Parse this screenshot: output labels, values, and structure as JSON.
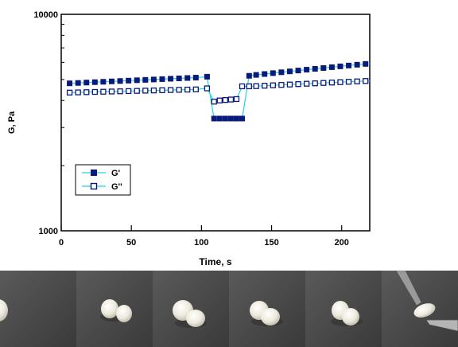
{
  "chart_data": {
    "type": "scatter",
    "xlabel": "Time, s",
    "ylabel": "G, Pa",
    "xlim": [
      0,
      220
    ],
    "ylim": [
      1000,
      10000
    ],
    "y_scale": "log",
    "x_ticks": [
      "0",
      "50",
      "100",
      "150",
      "200"
    ],
    "y_ticks": [
      "1000",
      "10000"
    ],
    "legend_position": "lower-left",
    "grid": false,
    "series": [
      {
        "name": "G'",
        "marker": "filled-square",
        "color": "#0a1a7a",
        "line_color": "#22d3e6",
        "x": [
          6,
          12,
          18,
          24,
          30,
          36,
          42,
          48,
          54,
          60,
          66,
          72,
          78,
          84,
          90,
          96,
          104,
          109,
          113,
          117,
          121,
          125,
          129,
          134,
          139,
          145,
          151,
          157,
          163,
          169,
          175,
          181,
          187,
          193,
          199,
          205,
          211,
          217
        ],
        "y": [
          4800,
          4820,
          4840,
          4860,
          4880,
          4900,
          4920,
          4940,
          4960,
          4980,
          5000,
          5020,
          5040,
          5060,
          5080,
          5100,
          5150,
          3300,
          3300,
          3300,
          3300,
          3300,
          3300,
          5200,
          5250,
          5300,
          5350,
          5400,
          5450,
          5500,
          5550,
          5600,
          5650,
          5700,
          5750,
          5800,
          5850,
          5900
        ]
      },
      {
        "name": "G''",
        "marker": "open-square",
        "color": "#0a1a7a",
        "line_color": "#22d3e6",
        "x": [
          6,
          12,
          18,
          24,
          30,
          36,
          42,
          48,
          54,
          60,
          66,
          72,
          78,
          84,
          90,
          96,
          104,
          109,
          113,
          117,
          121,
          125,
          129,
          134,
          139,
          145,
          151,
          157,
          163,
          169,
          175,
          181,
          187,
          193,
          199,
          205,
          211,
          217
        ],
        "y": [
          4350,
          4360,
          4370,
          4380,
          4390,
          4400,
          4410,
          4420,
          4430,
          4440,
          4450,
          4460,
          4470,
          4480,
          4490,
          4500,
          4550,
          3950,
          4000,
          4020,
          4040,
          4060,
          4650,
          4650,
          4660,
          4680,
          4700,
          4720,
          4740,
          4760,
          4780,
          4800,
          4820,
          4840,
          4860,
          4880,
          4900,
          4920
        ]
      }
    ]
  },
  "photos": [
    {
      "name": "single-blob-edge"
    },
    {
      "name": "two-separate-pieces"
    },
    {
      "name": "pieces-touching"
    },
    {
      "name": "pieces-merging"
    },
    {
      "name": "pieces-healed"
    },
    {
      "name": "healed-piece-stretched-tweezers"
    }
  ]
}
